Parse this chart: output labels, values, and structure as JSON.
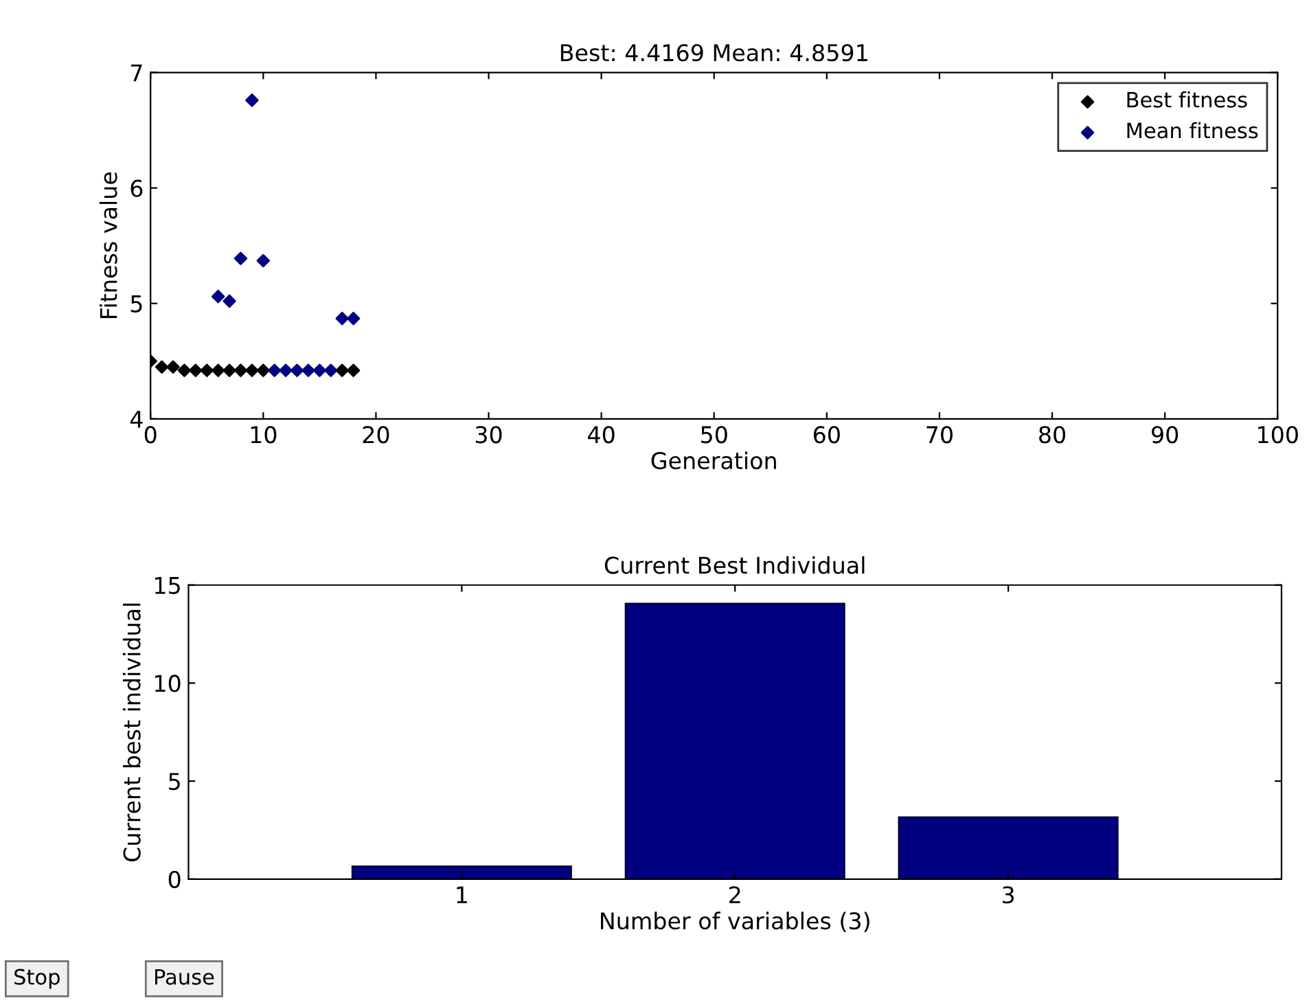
{
  "chart_data": [
    {
      "type": "scatter",
      "title": "Best: 4.4169 Mean: 4.8591",
      "xlabel": "Generation",
      "ylabel": "Fitness value",
      "xlim": [
        0,
        100
      ],
      "xticks": [
        0,
        10,
        20,
        30,
        40,
        50,
        60,
        70,
        80,
        90,
        100
      ],
      "ylim": [
        4,
        7
      ],
      "yticks": [
        4,
        5,
        6,
        7
      ],
      "marker": "diamond",
      "legend": "top right",
      "grid": false,
      "series": [
        {
          "name": "Best fitness",
          "color": "#000000",
          "x": [
            0,
            1,
            2,
            3,
            4,
            5,
            6,
            7,
            8,
            9,
            10,
            11,
            12,
            13,
            14,
            15,
            16,
            17,
            18
          ],
          "values": [
            4.5,
            4.45,
            4.45,
            4.42,
            4.42,
            4.42,
            4.42,
            4.42,
            4.42,
            4.42,
            4.42,
            null,
            null,
            null,
            null,
            null,
            null,
            4.42,
            4.42
          ]
        },
        {
          "name": "Mean fitness",
          "color": "#000080",
          "x": [
            6,
            7,
            8,
            9,
            10,
            11,
            12,
            13,
            14,
            15,
            16,
            17,
            18
          ],
          "values": [
            5.06,
            5.02,
            5.39,
            6.76,
            5.37,
            4.42,
            4.42,
            4.42,
            4.42,
            4.42,
            4.42,
            4.87,
            4.87
          ]
        }
      ]
    },
    {
      "type": "bar",
      "title": "Current Best Individual",
      "xlabel": "Number of variables (3)",
      "ylabel": "Current best individual",
      "categories": [
        "1",
        "2",
        "3"
      ],
      "values": [
        0.65,
        14.05,
        3.15
      ],
      "color": "#000080",
      "ylim": [
        0,
        15
      ],
      "yticks": [
        0,
        5,
        10,
        15
      ],
      "grid": false,
      "annotations": [
        "Stop",
        "Pause"
      ]
    }
  ]
}
